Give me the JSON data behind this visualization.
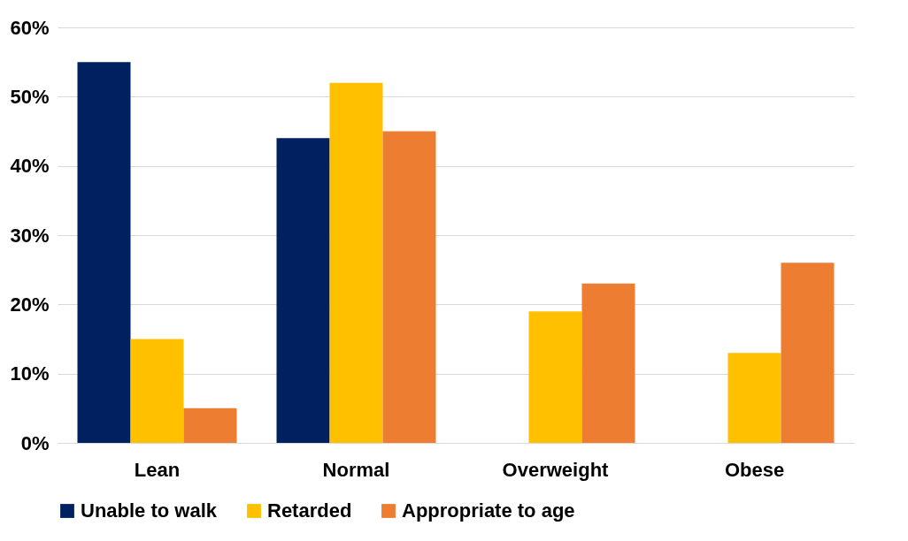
{
  "chart_data": {
    "type": "bar",
    "categories": [
      "Lean",
      "Normal",
      "Overweight",
      "Obese"
    ],
    "series": [
      {
        "name": "Unable to walk",
        "color": "#002060",
        "values": [
          55,
          44,
          0,
          0
        ]
      },
      {
        "name": "Retarded",
        "color": "#ffc000",
        "values": [
          15,
          52,
          19,
          13
        ]
      },
      {
        "name": "Appropriate to age",
        "color": "#ed7d31",
        "values": [
          5,
          45,
          23,
          26
        ]
      }
    ],
    "ylim": [
      0,
      60
    ],
    "yticks": [
      {
        "value": 0,
        "label": "0%"
      },
      {
        "value": 10,
        "label": "10%"
      },
      {
        "value": 20,
        "label": "20%"
      },
      {
        "value": 30,
        "label": "30%"
      },
      {
        "value": 40,
        "label": "40%"
      },
      {
        "value": 50,
        "label": "50%"
      },
      {
        "value": 60,
        "label": "60%"
      }
    ],
    "grid": "y",
    "legend": "bottom"
  }
}
